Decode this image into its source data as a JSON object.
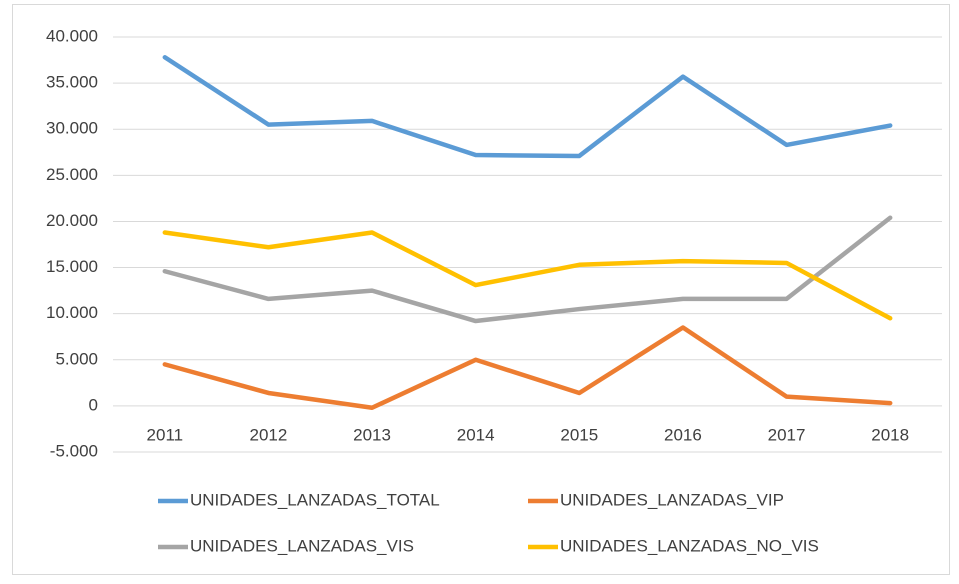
{
  "chart_data": {
    "type": "line",
    "categories": [
      "2011",
      "2012",
      "2013",
      "2014",
      "2015",
      "2016",
      "2017",
      "2018"
    ],
    "series": [
      {
        "name": "UNIDADES_LANZADAS_TOTAL",
        "color": "#5b9bd5",
        "values": [
          37800,
          30500,
          30900,
          27200,
          27100,
          35700,
          28300,
          30400
        ]
      },
      {
        "name": "UNIDADES_LANZADAS_VIP",
        "color": "#ed7d31",
        "values": [
          4500,
          1400,
          -200,
          5000,
          1400,
          8500,
          1000,
          300
        ]
      },
      {
        "name": "UNIDADES_LANZADAS_VIS",
        "color": "#a5a5a5",
        "values": [
          14600,
          11600,
          12500,
          9200,
          10500,
          11600,
          11600,
          20400
        ]
      },
      {
        "name": "UNIDADES_LANZADAS_NO_VIS",
        "color": "#ffc000",
        "values": [
          18800,
          17200,
          18800,
          13100,
          15300,
          15700,
          15500,
          9500
        ]
      }
    ],
    "ylim": [
      -5000,
      40000
    ],
    "yticks": [
      {
        "value": -5000,
        "label": "-5.000"
      },
      0,
      {
        "value": 5000,
        "label": "5.000"
      },
      {
        "value": 10000,
        "label": "10.000"
      },
      {
        "value": 15000,
        "label": "15.000"
      },
      {
        "value": 20000,
        "label": "20.000"
      },
      {
        "value": 25000,
        "label": "25.000"
      },
      {
        "value": 30000,
        "label": "30.000"
      },
      {
        "value": 35000,
        "label": "35.000"
      },
      {
        "value": 40000,
        "label": "40.000"
      }
    ],
    "grid": true,
    "legend": "bottom"
  }
}
